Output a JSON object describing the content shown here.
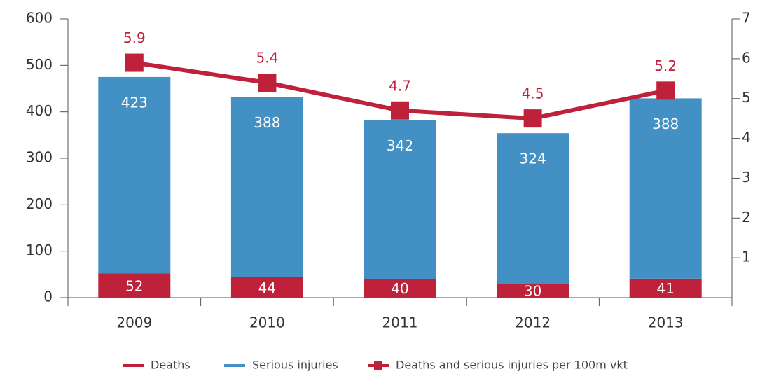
{
  "chart_data": {
    "type": "bar-line",
    "categories": [
      "2009",
      "2010",
      "2011",
      "2012",
      "2013"
    ],
    "series": [
      {
        "name": "Deaths",
        "color": "#c0213a",
        "values": [
          52,
          44,
          40,
          30,
          41
        ]
      },
      {
        "name": "Serious injuries",
        "color": "#4391c4",
        "values": [
          423,
          388,
          342,
          324,
          388
        ]
      },
      {
        "name": "Deaths and serious injuries per 100m vkt",
        "color": "#c0213a",
        "axis": "y2",
        "type": "line",
        "values": [
          5.9,
          5.4,
          4.7,
          4.5,
          5.2
        ]
      }
    ],
    "ylim": [
      0,
      600
    ],
    "yticks": [
      0,
      100,
      200,
      300,
      400,
      500,
      600
    ],
    "y2lim": [
      0,
      7
    ],
    "y2ticks": [
      1,
      2,
      3,
      4,
      5,
      6,
      7
    ]
  }
}
